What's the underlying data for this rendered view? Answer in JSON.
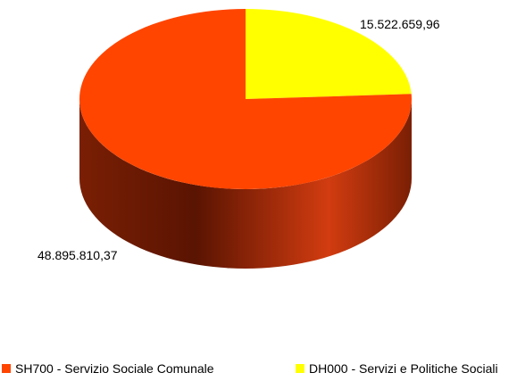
{
  "chart_data": {
    "type": "pie",
    "style": "3d",
    "title": "",
    "series": [
      {
        "name": "SH700 - Servizio Sociale Comunale",
        "value": 48895810.37,
        "label": "48.895.810,37",
        "color": "#ff4500",
        "side_color": "#8b2a0a"
      },
      {
        "name": "DH000 - Servizi e Politiche Sociali",
        "value": 15522659.96,
        "label": "15.522.659,96",
        "color": "#ffff00",
        "side_color": "#b3b300"
      }
    ],
    "legend": "bottom",
    "data_labels": "outside"
  }
}
